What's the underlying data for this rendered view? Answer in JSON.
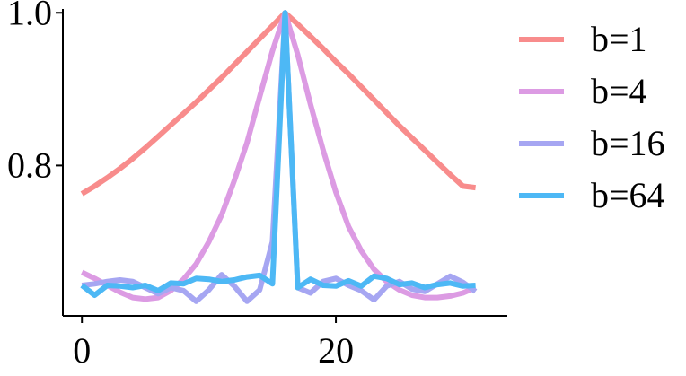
{
  "chart_data": {
    "type": "line",
    "title": "",
    "xlabel": "",
    "ylabel": "",
    "xlim": [
      -1.5,
      33.5
    ],
    "ylim": [
      0.603,
      1.005
    ],
    "x_ticks": [
      0,
      20
    ],
    "x_tick_labels": [
      "0",
      "20"
    ],
    "y_ticks": [
      0.8,
      1.0
    ],
    "y_tick_labels": [
      "0.8",
      "1.0"
    ],
    "grid": false,
    "legend": "right",
    "x": [
      0,
      1,
      2,
      3,
      4,
      5,
      6,
      7,
      8,
      9,
      10,
      11,
      12,
      13,
      14,
      15,
      16,
      17,
      18,
      19,
      20,
      21,
      22,
      23,
      24,
      25,
      26,
      27,
      28,
      29,
      30,
      31
    ],
    "series": [
      {
        "name": "b=1",
        "color": "#f88c8c",
        "values": [
          0.763,
          0.773,
          0.784,
          0.796,
          0.809,
          0.823,
          0.838,
          0.853,
          0.868,
          0.883,
          0.899,
          0.915,
          0.932,
          0.949,
          0.966,
          0.983,
          1.0,
          0.985,
          0.969,
          0.953,
          0.936,
          0.92,
          0.903,
          0.886,
          0.869,
          0.852,
          0.836,
          0.82,
          0.804,
          0.788,
          0.773,
          0.771
        ]
      },
      {
        "name": "b=4",
        "color": "#dc9be3",
        "values": [
          0.66,
          0.652,
          0.643,
          0.634,
          0.627,
          0.625,
          0.627,
          0.636,
          0.651,
          0.671,
          0.7,
          0.735,
          0.78,
          0.83,
          0.89,
          0.95,
          1.0,
          0.945,
          0.88,
          0.82,
          0.765,
          0.72,
          0.688,
          0.664,
          0.648,
          0.637,
          0.63,
          0.627,
          0.627,
          0.629,
          0.633,
          0.64
        ]
      },
      {
        "name": "b=16",
        "color": "#a6a6f2",
        "values": [
          0.643,
          0.645,
          0.648,
          0.65,
          0.648,
          0.64,
          0.632,
          0.64,
          0.636,
          0.622,
          0.637,
          0.657,
          0.642,
          0.622,
          0.637,
          0.7,
          1.0,
          0.64,
          0.633,
          0.648,
          0.652,
          0.643,
          0.636,
          0.624,
          0.642,
          0.648,
          0.638,
          0.635,
          0.645,
          0.655,
          0.647,
          0.635
        ]
      },
      {
        "name": "b=64",
        "color": "#4db8f5",
        "values": [
          0.643,
          0.63,
          0.643,
          0.642,
          0.64,
          0.643,
          0.636,
          0.646,
          0.645,
          0.652,
          0.651,
          0.648,
          0.65,
          0.654,
          0.656,
          0.645,
          1.0,
          0.64,
          0.651,
          0.643,
          0.642,
          0.649,
          0.642,
          0.655,
          0.652,
          0.644,
          0.646,
          0.64,
          0.644,
          0.646,
          0.642,
          0.643
        ]
      }
    ]
  }
}
